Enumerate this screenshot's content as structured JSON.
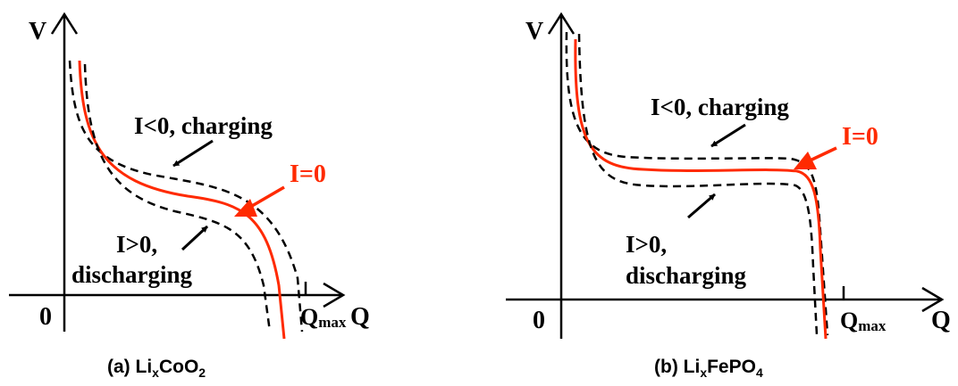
{
  "colors": {
    "equilibrium": "#ff2a00",
    "ink": "#000000"
  },
  "panel_a": {
    "axis_y": "V",
    "axis_x": "Q",
    "origin": "0",
    "qmax_main": "Q",
    "qmax_sub": "max",
    "label_charge": "I<0, charging",
    "label_i0": "I=0",
    "label_dis_1": "I>0,",
    "label_dis_2": "discharging",
    "caption_1": "(a) Li",
    "caption_sub1": "x",
    "caption_2": "CoO",
    "caption_sub2": "2"
  },
  "panel_b": {
    "axis_y": "V",
    "axis_x": "Q",
    "origin": "0",
    "qmax_main": "Q",
    "qmax_sub": "max",
    "label_charge": "I<0, charging",
    "label_i0": "I=0",
    "label_dis_1": "I>0,",
    "label_dis_2": "discharging",
    "caption_1": "(b) Li",
    "caption_sub1": "x",
    "caption_2": "FePO",
    "caption_sub2": "4"
  }
}
